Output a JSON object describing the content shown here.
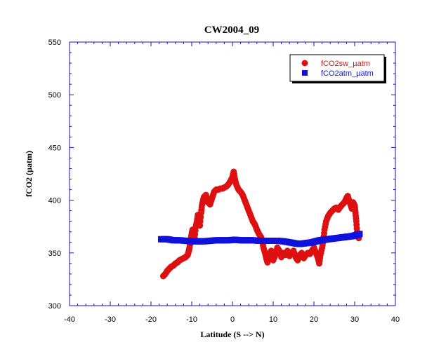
{
  "chart_data": {
    "type": "scatter",
    "title": "CW2004_09",
    "xlabel": "Latitude (S --> N)",
    "ylabel": "fCO2 (µatm)",
    "xlim": [
      -40,
      40
    ],
    "ylim": [
      300,
      550
    ],
    "x_ticks": [
      -40,
      -30,
      -20,
      -10,
      0,
      10,
      20,
      30,
      40
    ],
    "y_ticks": [
      300,
      350,
      400,
      450,
      500,
      550
    ],
    "grid": false,
    "legend_position": "top-right",
    "series": [
      {
        "name": "fCO2sw_µatm",
        "color": "#dd1111",
        "marker": "circle",
        "points": [
          [
            -17.0,
            328
          ],
          [
            -16.5,
            330
          ],
          [
            -16.0,
            333
          ],
          [
            -15.5,
            335
          ],
          [
            -15.0,
            337
          ],
          [
            -14.5,
            338
          ],
          [
            -14.0,
            340
          ],
          [
            -13.5,
            341
          ],
          [
            -13.0,
            343
          ],
          [
            -12.5,
            344
          ],
          [
            -12.0,
            345
          ],
          [
            -11.5,
            346
          ],
          [
            -11.0,
            348
          ],
          [
            -10.7,
            352
          ],
          [
            -10.5,
            356
          ],
          [
            -10.3,
            362
          ],
          [
            -10.0,
            368
          ],
          [
            -9.8,
            372
          ],
          [
            -9.5,
            368
          ],
          [
            -9.3,
            364
          ],
          [
            -9.0,
            375
          ],
          [
            -8.7,
            380
          ],
          [
            -8.5,
            386
          ],
          [
            -8.2,
            378
          ],
          [
            -8.0,
            376
          ],
          [
            -7.7,
            388
          ],
          [
            -7.5,
            395
          ],
          [
            -7.2,
            400
          ],
          [
            -7.0,
            403
          ],
          [
            -6.5,
            405
          ],
          [
            -6.0,
            398
          ],
          [
            -5.5,
            396
          ],
          [
            -5.0,
            402
          ],
          [
            -4.5,
            408
          ],
          [
            -4.0,
            410
          ],
          [
            -3.5,
            410
          ],
          [
            -3.0,
            411
          ],
          [
            -2.5,
            411
          ],
          [
            -2.0,
            412
          ],
          [
            -1.5,
            413
          ],
          [
            -1.0,
            415
          ],
          [
            -0.5,
            418
          ],
          [
            0.0,
            422
          ],
          [
            0.3,
            427
          ],
          [
            0.6,
            420
          ],
          [
            1.0,
            414
          ],
          [
            1.5,
            410
          ],
          [
            2.0,
            408
          ],
          [
            2.5,
            405
          ],
          [
            3.0,
            400
          ],
          [
            3.5,
            395
          ],
          [
            4.0,
            390
          ],
          [
            4.5,
            385
          ],
          [
            5.0,
            380
          ],
          [
            5.5,
            377
          ],
          [
            6.0,
            372
          ],
          [
            6.5,
            368
          ],
          [
            7.0,
            365
          ],
          [
            7.3,
            362
          ],
          [
            7.6,
            355
          ],
          [
            8.0,
            350
          ],
          [
            8.3,
            345
          ],
          [
            8.6,
            341
          ],
          [
            9.0,
            348
          ],
          [
            9.5,
            352
          ],
          [
            10.0,
            343
          ],
          [
            10.5,
            348
          ],
          [
            11.0,
            355
          ],
          [
            11.5,
            352
          ],
          [
            12.0,
            346
          ],
          [
            12.5,
            350
          ],
          [
            13.0,
            348
          ],
          [
            13.5,
            352
          ],
          [
            14.0,
            347
          ],
          [
            14.5,
            350
          ],
          [
            15.0,
            352
          ],
          [
            15.5,
            346
          ],
          [
            16.0,
            343
          ],
          [
            16.5,
            348
          ],
          [
            17.0,
            350
          ],
          [
            17.5,
            345
          ],
          [
            18.0,
            348
          ],
          [
            18.5,
            350
          ],
          [
            19.0,
            349
          ],
          [
            19.5,
            352
          ],
          [
            20.0,
            355
          ],
          [
            20.5,
            350
          ],
          [
            21.0,
            345
          ],
          [
            21.3,
            340
          ],
          [
            21.6,
            348
          ],
          [
            22.0,
            355
          ],
          [
            22.3,
            362
          ],
          [
            22.6,
            372
          ],
          [
            23.0,
            380
          ],
          [
            23.5,
            385
          ],
          [
            24.0,
            388
          ],
          [
            24.5,
            390
          ],
          [
            25.0,
            392
          ],
          [
            25.5,
            393
          ],
          [
            26.0,
            391
          ],
          [
            26.5,
            394
          ],
          [
            27.0,
            396
          ],
          [
            27.5,
            398
          ],
          [
            28.0,
            402
          ],
          [
            28.3,
            404
          ],
          [
            28.6,
            400
          ],
          [
            29.0,
            396
          ],
          [
            29.3,
            392
          ],
          [
            29.6,
            398
          ],
          [
            30.0,
            395
          ],
          [
            30.2,
            388
          ],
          [
            30.4,
            380
          ],
          [
            30.6,
            370
          ],
          [
            30.8,
            366
          ],
          [
            31.0,
            364
          ]
        ]
      },
      {
        "name": "fCO2atm_µatm",
        "color": "#1111dd",
        "marker": "square",
        "points": [
          [
            -17.5,
            363
          ],
          [
            -16.0,
            363
          ],
          [
            -14.5,
            362
          ],
          [
            -13.0,
            362
          ],
          [
            -11.5,
            361.5
          ],
          [
            -10.0,
            361
          ],
          [
            -8.5,
            361
          ],
          [
            -7.0,
            361
          ],
          [
            -5.5,
            361.5
          ],
          [
            -4.0,
            362
          ],
          [
            -2.5,
            362
          ],
          [
            -1.0,
            362
          ],
          [
            0.5,
            362.5
          ],
          [
            2.0,
            362
          ],
          [
            3.5,
            362
          ],
          [
            5.0,
            362
          ],
          [
            6.5,
            361.5
          ],
          [
            8.0,
            361.5
          ],
          [
            9.5,
            361.5
          ],
          [
            11.0,
            361.5
          ],
          [
            12.5,
            361
          ],
          [
            14.0,
            360
          ],
          [
            15.5,
            359
          ],
          [
            16.5,
            358.5
          ],
          [
            17.5,
            359
          ],
          [
            18.5,
            359.5
          ],
          [
            19.5,
            360
          ],
          [
            20.5,
            361
          ],
          [
            21.5,
            362
          ],
          [
            22.5,
            362.5
          ],
          [
            23.5,
            363
          ],
          [
            24.5,
            363.5
          ],
          [
            25.5,
            364
          ],
          [
            26.5,
            364.5
          ],
          [
            27.5,
            365
          ],
          [
            28.5,
            365.5
          ],
          [
            29.5,
            366
          ],
          [
            30.5,
            367
          ],
          [
            31.2,
            368
          ]
        ]
      }
    ]
  }
}
